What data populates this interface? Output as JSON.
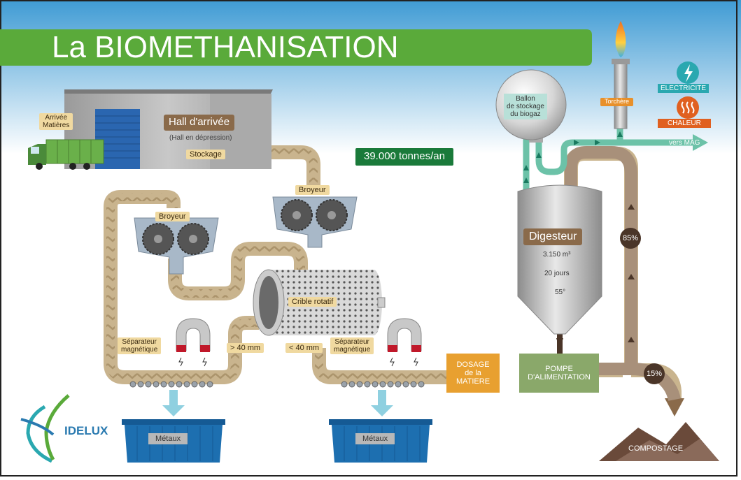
{
  "title": "La BIOMETHANISATION",
  "labels": {
    "arrivee_line1": "Arrivée",
    "arrivee_line2": "Matières",
    "hall": "Hall d'arrivée",
    "hall_sub": "(Hall en dépression)",
    "stockage": "Stockage",
    "tonnage": "39.000 tonnes/an",
    "broyeur_right": "Broyeur",
    "broyeur_left": "Broyeur",
    "crible": "Crible rotatif",
    "sep_left_1": "Séparateur",
    "sep_left_2": "magnétique",
    "sep_right_1": "Séparateur",
    "sep_right_2": "magnétique",
    "gt40": "> 40 mm",
    "lt40": "< 40 mm",
    "metaux_left": "Métaux",
    "metaux_right": "Métaux",
    "ballon_1": "Ballon",
    "ballon_2": "de stockage",
    "ballon_3": "du biogaz",
    "torchere": "Torchère",
    "electricite": "ELECTRICITE",
    "chaleur": "CHALEUR",
    "vers_mag": "vers MAG",
    "digesteur": "Digesteur",
    "dig_volume": "3.150 m³",
    "dig_days": "20 jours",
    "dig_temp": "55°",
    "pct85": "85%",
    "pct15": "15%",
    "dosage_1": "DOSAGE",
    "dosage_2": "de la",
    "dosage_3": "MATIERE",
    "pompe_1": "POMPE",
    "pompe_2": "D'ALIMENTATION",
    "compostage": "COMPOSTAGE",
    "logo": "IDELUX"
  },
  "colors": {
    "title_bar": "#5aaa3a",
    "sky_top": "#3f9bd4",
    "belt": "#c9b48e",
    "gas_line": "#6cc2a8",
    "container": "#1d6fb0",
    "brown": "#8a6a4a",
    "dosage": "#e8a030",
    "pompe": "#8aa86a",
    "tonnage_bg": "#1a7a3a"
  },
  "icons": [
    "truck-icon",
    "door-icon",
    "magnet-icon",
    "flame-icon",
    "lightning-icon",
    "heat-icon",
    "arrow-icon",
    "idelux-logo-icon"
  ]
}
